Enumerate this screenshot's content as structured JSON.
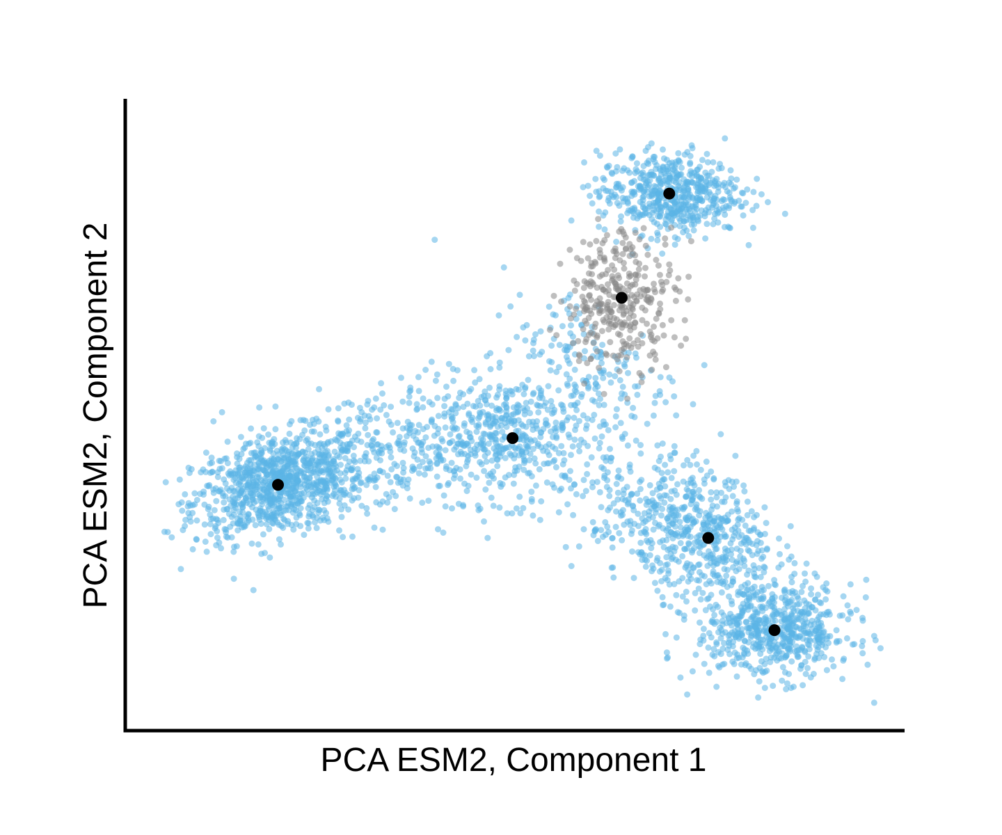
{
  "chart_data": {
    "type": "scatter",
    "title": "",
    "xlabel": "PCA ESM2, Component 1",
    "ylabel": "PCA ESM2,  Component 2",
    "xlim": [
      0,
      100
    ],
    "ylim": [
      0,
      100
    ],
    "x_ticks": [],
    "y_ticks": [],
    "grid": false,
    "legend": "none",
    "colors": {
      "main": "#5bb4e6",
      "other": "#888888",
      "centroid": "#000000",
      "axis": "#000000"
    },
    "series": [
      {
        "color": "#5bb4e6",
        "cluster_points_approx": [
          {
            "cx": 19.6,
            "cy": 38.9,
            "sx": 5.5,
            "sy": 4.2,
            "n": 900,
            "corr": 0.35
          },
          {
            "cx": 49.7,
            "cy": 46.3,
            "sx": 7.0,
            "sy": 5.0,
            "n": 520,
            "corr": 0.05
          },
          {
            "cx": 32.0,
            "cy": 44.0,
            "sx": 8.0,
            "sy": 5.5,
            "n": 300,
            "corr": 0.25
          },
          {
            "cx": 60.0,
            "cy": 58.0,
            "sx": 6.0,
            "sy": 6.0,
            "n": 150,
            "corr": -0.4
          },
          {
            "cx": 69.8,
            "cy": 85.0,
            "sx": 4.5,
            "sy": 3.2,
            "n": 560,
            "corr": 0.0
          },
          {
            "cx": 74.8,
            "cy": 30.5,
            "sx": 4.3,
            "sy": 5.2,
            "n": 400,
            "corr": -0.2
          },
          {
            "cx": 83.3,
            "cy": 15.9,
            "sx": 5.0,
            "sy": 3.8,
            "n": 620,
            "corr": 0.0
          },
          {
            "cx": 67.0,
            "cy": 34.0,
            "sx": 5.0,
            "sy": 4.5,
            "n": 200,
            "corr": 0.0
          }
        ]
      },
      {
        "color": "#888888",
        "cluster_points_approx": [
          {
            "cx": 63.7,
            "cy": 68.5,
            "sx": 3.6,
            "sy": 5.5,
            "n": 330,
            "corr": 0.1
          }
        ]
      }
    ],
    "centroids": [
      {
        "x": 19.6,
        "y": 38.9
      },
      {
        "x": 49.7,
        "y": 46.3
      },
      {
        "x": 63.7,
        "y": 68.5
      },
      {
        "x": 69.8,
        "y": 85.0
      },
      {
        "x": 74.8,
        "y": 30.5
      },
      {
        "x": 83.3,
        "y": 15.9
      }
    ]
  }
}
